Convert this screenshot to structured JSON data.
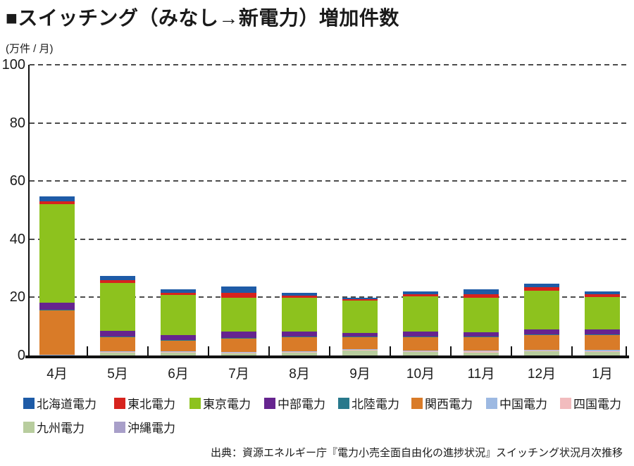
{
  "title": {
    "bullet": "■",
    "text": "スイッチング（みなし→新電力）増加件数"
  },
  "source": "出典：資源エネルギー庁『電力小売全面自由化の進捗状況』スイッチング状況月次推移",
  "chart_data": {
    "type": "bar",
    "stacked": true,
    "title": "スイッチング（みなし→新電力）増加件数",
    "unit_label": "(万件 / 月)",
    "ylabel": "万件/月",
    "ylim": [
      0,
      100
    ],
    "yticks": [
      0,
      20,
      40,
      60,
      80,
      100
    ],
    "grid": "horizontal-dashed",
    "legend_position": "bottom",
    "stack_note": "first series is drawn at the top of each stack, last series at the bottom",
    "categories": [
      "4月",
      "5月",
      "6月",
      "7月",
      "8月",
      "9月",
      "10月",
      "11月",
      "12月",
      "1月"
    ],
    "series": [
      {
        "name": "北海道電力",
        "color": "#1e5ba7",
        "values": [
          1.7,
          1.4,
          1.1,
          2.2,
          0.9,
          0.5,
          1.1,
          1.5,
          1.3,
          1.0
        ]
      },
      {
        "name": "東北電力",
        "color": "#d7231d",
        "values": [
          1.0,
          0.9,
          0.7,
          1.8,
          0.7,
          0.5,
          0.7,
          1.2,
          1.2,
          1.0
        ]
      },
      {
        "name": "東京電力",
        "color": "#8dc21e",
        "values": [
          34.0,
          16.4,
          13.8,
          11.6,
          11.6,
          11.3,
          11.9,
          11.9,
          13.3,
          11.3
        ]
      },
      {
        "name": "中部電力",
        "color": "#66248f",
        "values": [
          2.4,
          1.9,
          1.8,
          2.1,
          1.8,
          1.2,
          1.8,
          1.5,
          1.7,
          1.5
        ]
      },
      {
        "name": "北陸電力",
        "color": "#28798c",
        "values": [
          0.1,
          0.2,
          0.2,
          0.2,
          0.2,
          0.2,
          0.3,
          0.3,
          0.3,
          0.2
        ]
      },
      {
        "name": "関西電力",
        "color": "#d97b28",
        "values": [
          15.3,
          5.0,
          3.6,
          4.6,
          4.8,
          4.1,
          4.6,
          4.6,
          4.9,
          5.2
        ]
      },
      {
        "name": "中国電力",
        "color": "#9db9e2",
        "values": [
          0.1,
          0.2,
          0.2,
          0.2,
          0.2,
          0.2,
          0.3,
          0.3,
          0.4,
          0.4
        ]
      },
      {
        "name": "四国電力",
        "color": "#f2bcbe",
        "values": [
          0.1,
          0.3,
          0.2,
          0.2,
          0.2,
          0.2,
          0.2,
          0.3,
          0.2,
          0.2
        ]
      },
      {
        "name": "九州電力",
        "color": "#b8cd9e",
        "values": [
          0.1,
          0.9,
          1.0,
          0.8,
          1.0,
          1.7,
          1.1,
          1.0,
          1.4,
          1.3
        ]
      },
      {
        "name": "沖縄電力",
        "color": "#a89fc9",
        "values": [
          0.0,
          0.05,
          0.05,
          0.05,
          0.05,
          0.05,
          0.05,
          0.05,
          0.05,
          0.05
        ]
      }
    ]
  }
}
